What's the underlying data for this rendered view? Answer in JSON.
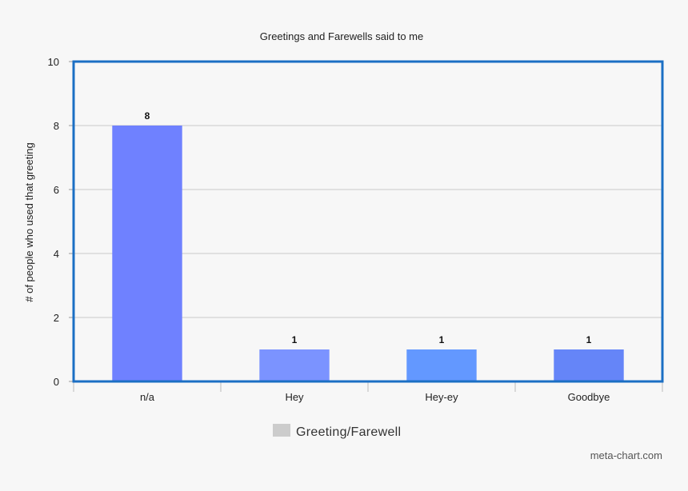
{
  "chart_data": {
    "type": "bar",
    "title": "Greetings and Farewells said to me",
    "xlabel": "",
    "ylabel": "# of people who used that greeting",
    "categories": [
      "n/a",
      "Hey",
      "Hey-ey",
      "Goodbye"
    ],
    "series": [
      {
        "name": "Greeting/Farewell",
        "values": [
          8,
          1,
          1,
          1
        ]
      }
    ],
    "data_labels": [
      "8",
      "1",
      "1",
      "1"
    ],
    "ylim": [
      0,
      10
    ],
    "yticks": [
      0,
      2,
      4,
      6,
      8,
      10
    ],
    "grid": true,
    "legend": "bottom-center",
    "bar_colors": [
      "#6f81ff",
      "#7b93ff",
      "#6398ff",
      "#6585f8"
    ],
    "frame_color": "#1b6fc4",
    "legend_swatch_color": "#cccccc"
  },
  "credit": "meta-chart.com"
}
